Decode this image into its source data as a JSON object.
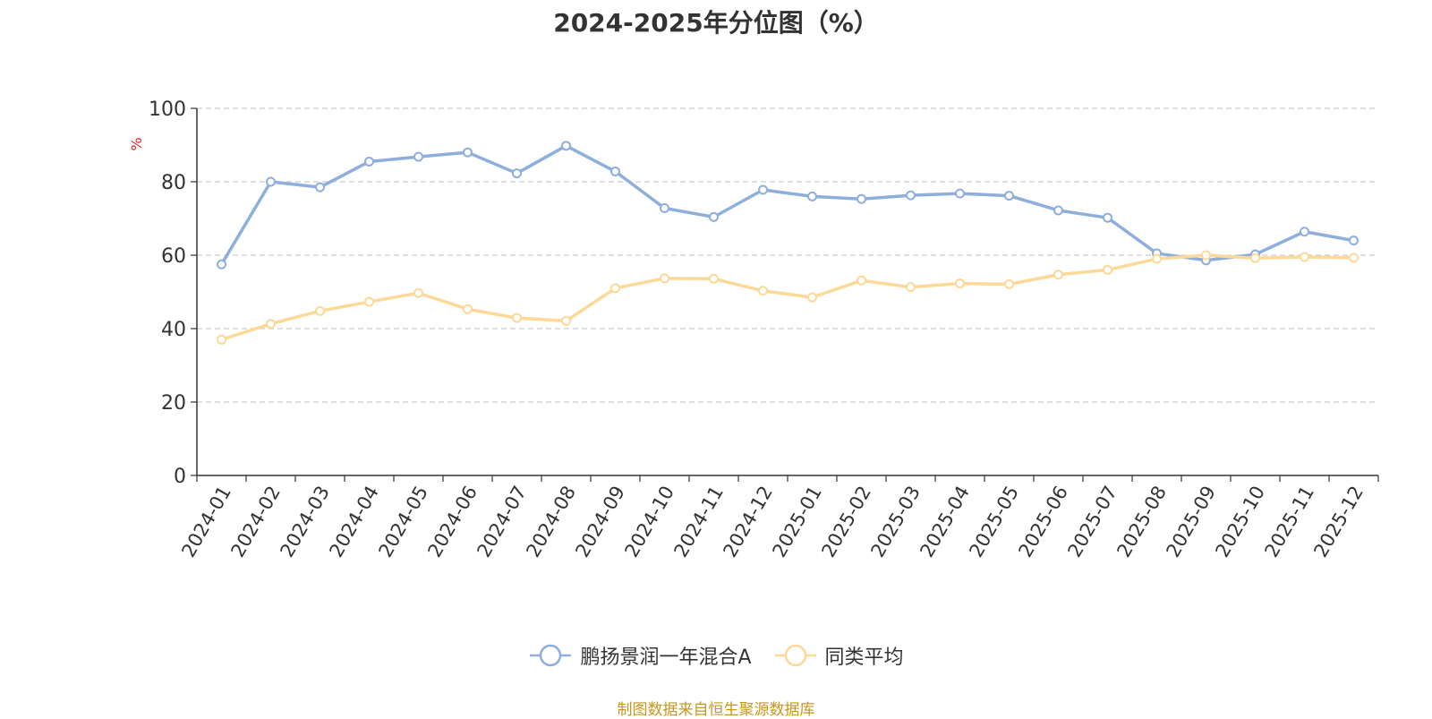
{
  "chart_data": {
    "type": "line",
    "title": "2024-2025年分位图（%）",
    "ylabel": "%",
    "ylim": [
      0,
      100
    ],
    "yticks": [
      0,
      20,
      40,
      60,
      80,
      100
    ],
    "grid": true,
    "legend_position": "bottom",
    "categories": [
      "2024-01",
      "2024-02",
      "2024-03",
      "2024-04",
      "2024-05",
      "2024-06",
      "2024-07",
      "2024-08",
      "2024-09",
      "2024-10",
      "2024-11",
      "2024-12",
      "2025-01",
      "2025-02",
      "2025-03",
      "2025-04",
      "2025-05",
      "2025-06",
      "2025-07",
      "2025-08",
      "2025-09",
      "2025-10",
      "2025-11",
      "2025-12"
    ],
    "series": [
      {
        "name": "鹏扬景润一年混合A",
        "color": "#8eaedb",
        "values": [
          57.5,
          80,
          78.5,
          85.5,
          86.8,
          88,
          82.3,
          89.8,
          82.8,
          72.8,
          70.4,
          77.8,
          76,
          75.3,
          76.3,
          76.8,
          76.2,
          72.2,
          70.2,
          60.5,
          58.6,
          60.2,
          66.4,
          64
        ]
      },
      {
        "name": "同类平均",
        "color": "#fcd996",
        "values": [
          37,
          41.3,
          44.8,
          47.3,
          49.7,
          45.3,
          42.9,
          42.1,
          51,
          53.7,
          53.6,
          50.3,
          48.5,
          53.1,
          51.3,
          52.3,
          52.1,
          54.7,
          56,
          59,
          60,
          59.2,
          59.5,
          59.3
        ]
      }
    ]
  },
  "source_text": "制图数据来自恒生聚源数据库"
}
